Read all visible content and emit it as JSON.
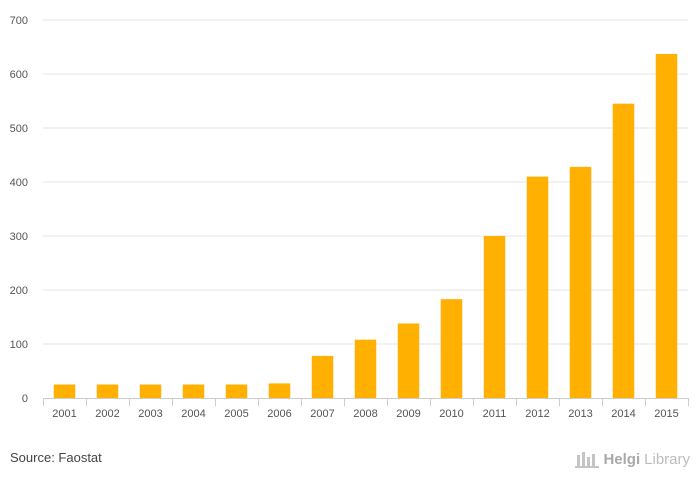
{
  "chart_data": {
    "type": "bar",
    "categories": [
      "2001",
      "2002",
      "2003",
      "2004",
      "2005",
      "2006",
      "2007",
      "2008",
      "2009",
      "2010",
      "2011",
      "2012",
      "2013",
      "2014",
      "2015"
    ],
    "values": [
      25,
      25,
      25,
      25,
      25,
      27,
      78,
      108,
      138,
      183,
      300,
      410,
      428,
      545,
      637
    ],
    "ylim": [
      0,
      700
    ],
    "yticks": [
      0,
      100,
      200,
      300,
      400,
      500,
      600,
      700
    ],
    "bar_color": "#FFB000",
    "grid": true,
    "title": "",
    "xlabel": "",
    "ylabel": ""
  },
  "footer": {
    "source_text": "Source: Faostat",
    "brand_part1": "Helgi",
    "brand_part2": "Library"
  },
  "colors": {
    "grid": "#e6e6e6",
    "axis": "#cccccc",
    "text": "#555555"
  }
}
